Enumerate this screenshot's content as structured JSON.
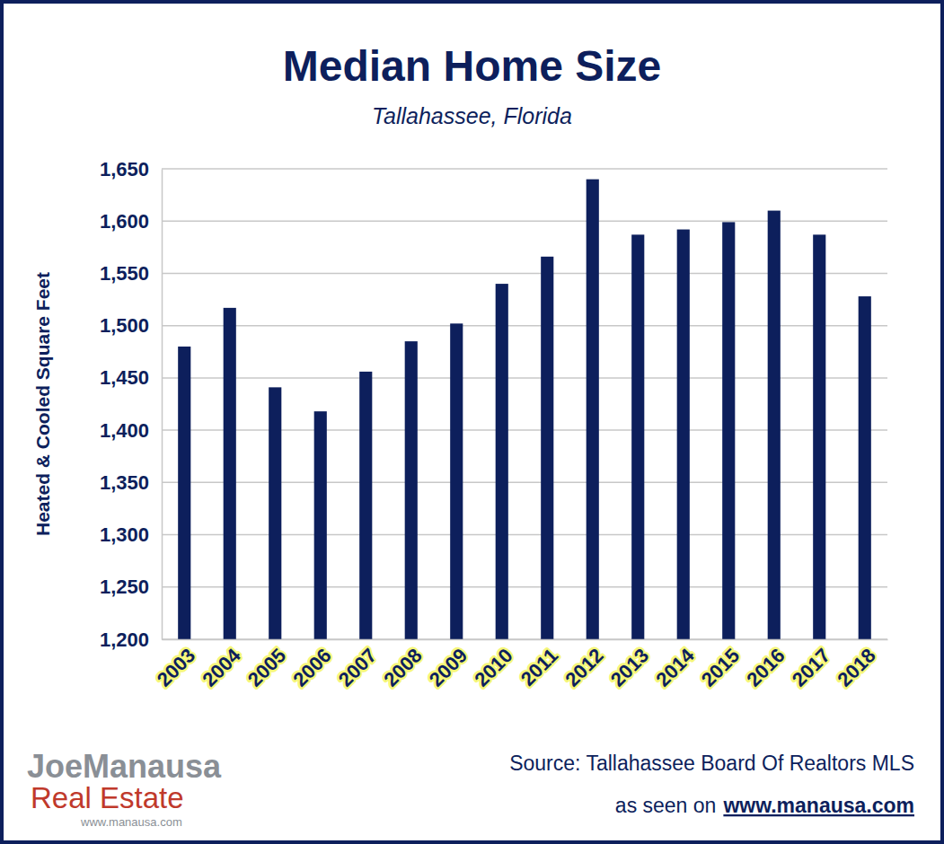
{
  "chart_data": {
    "type": "bar",
    "title": "Median Home Size",
    "subtitle": "Tallahassee, Florida",
    "y_label": "Heated & Cooled Square Feet",
    "categories": [
      "2003",
      "2004",
      "2005",
      "2006",
      "2007",
      "2008",
      "2009",
      "2010",
      "2011",
      "2012",
      "2013",
      "2014",
      "2015",
      "2016",
      "2017",
      "2018"
    ],
    "values": [
      1480,
      1517,
      1441,
      1418,
      1456,
      1485,
      1502,
      1540,
      1566,
      1640,
      1587,
      1592,
      1599,
      1610,
      1587,
      1528
    ],
    "color": "#0d1f5c",
    "ylim": [
      1200,
      1650
    ],
    "yticks": [
      {
        "value": 1200,
        "label": "1,200"
      },
      {
        "value": 1250,
        "label": "1,250"
      },
      {
        "value": 1300,
        "label": "1,300"
      },
      {
        "value": 1350,
        "label": "1,350"
      },
      {
        "value": 1400,
        "label": "1,400"
      },
      {
        "value": 1450,
        "label": "1,450"
      },
      {
        "value": 1500,
        "label": "1,500"
      },
      {
        "value": 1550,
        "label": "1,550"
      },
      {
        "value": 1600,
        "label": "1,600"
      },
      {
        "value": 1650,
        "label": "1,650"
      }
    ],
    "grid": true,
    "annotations": [
      "Source: Tallahassee Board Of Realtors MLS",
      "as seen on",
      "www.manausa.com",
      "JoeManausa",
      "Real Estate",
      "www.manausa.com"
    ]
  }
}
